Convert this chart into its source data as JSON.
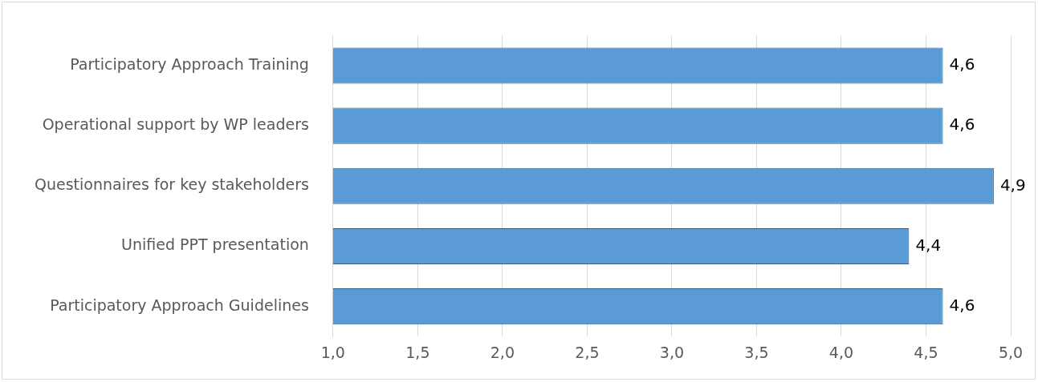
{
  "chart_data": {
    "type": "bar",
    "orientation": "horizontal",
    "categories": [
      "Participatory Approach Training",
      "Operational support by WP leaders",
      "Questionnaires for key stakeholders",
      "Unified PPT presentation",
      "Participatory Approach Guidelines"
    ],
    "values": [
      4.6,
      4.6,
      4.9,
      4.4,
      4.6
    ],
    "value_labels": [
      "4,6",
      "4,6",
      "4,9",
      "4,4",
      "4,6"
    ],
    "color": "#5b9bd5",
    "xlim": [
      1,
      5
    ],
    "xticks": [
      {
        "value": 1,
        "label": "1,0"
      },
      {
        "value": 1.5,
        "label": "1,5"
      },
      {
        "value": 2,
        "label": "2,0"
      },
      {
        "value": 2.5,
        "label": "2,5"
      },
      {
        "value": 3,
        "label": "3,0"
      },
      {
        "value": 3.5,
        "label": "3,5"
      },
      {
        "value": 4,
        "label": "4,0"
      },
      {
        "value": 4.5,
        "label": "4,5"
      },
      {
        "value": 5,
        "label": "5,0"
      }
    ],
    "grid": "x"
  }
}
